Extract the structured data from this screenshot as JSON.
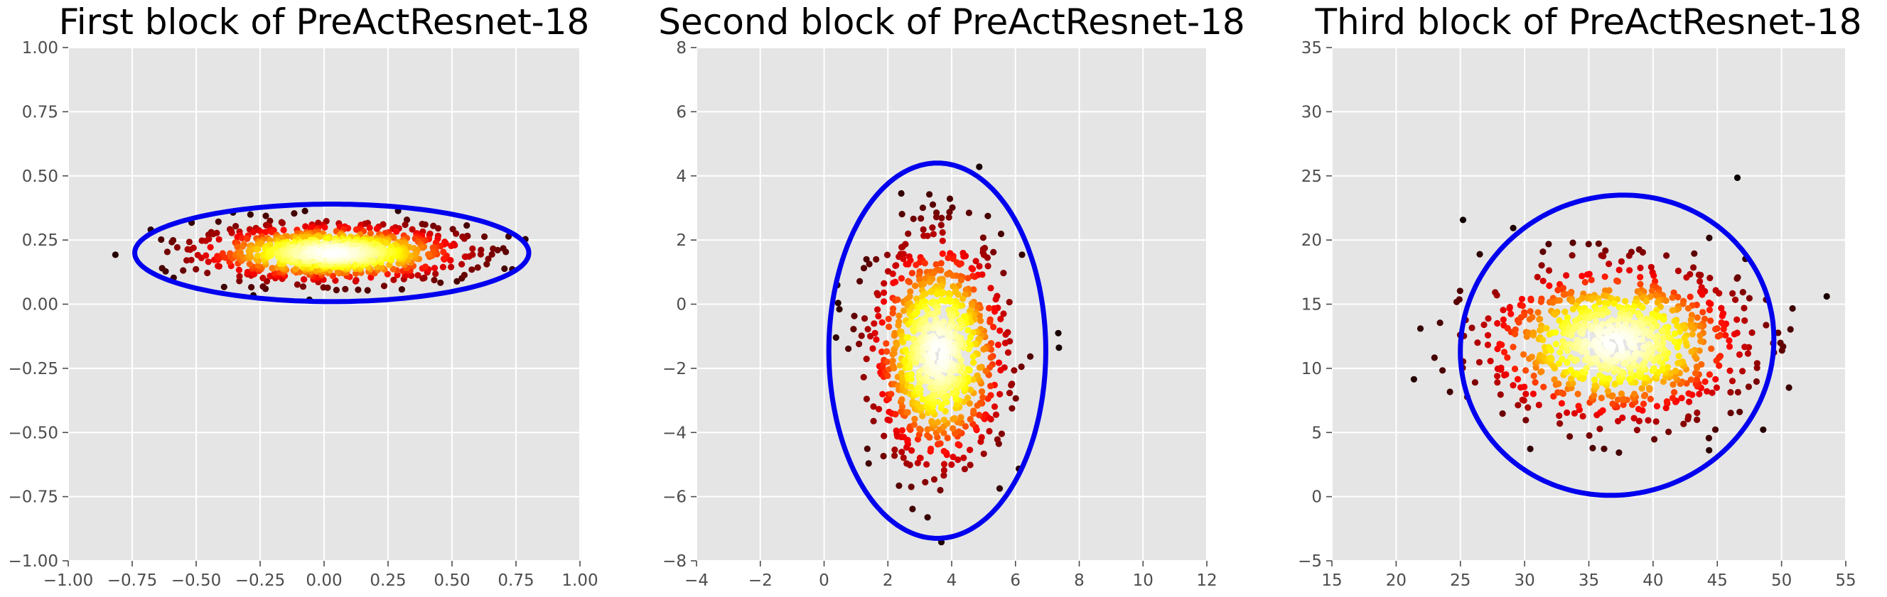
{
  "chart_data": [
    {
      "type": "scatter",
      "title": "First block of PreActResnet-18",
      "xlabel": "",
      "ylabel": "",
      "xlim": [
        -1.0,
        1.0
      ],
      "ylim": [
        -1.0,
        1.0
      ],
      "x_ticks": [
        -1.0,
        -0.75,
        -0.5,
        -0.25,
        0.0,
        0.25,
        0.5,
        0.75,
        1.0
      ],
      "x_tick_labels": [
        "−1.00",
        "−0.75",
        "−0.50",
        "−0.25",
        "0.00",
        "0.25",
        "0.50",
        "0.75",
        "1.00"
      ],
      "y_ticks": [
        -1.0,
        -0.75,
        -0.5,
        -0.25,
        0.0,
        0.25,
        0.5,
        0.75,
        1.0
      ],
      "y_tick_labels": [
        "−1.00",
        "−0.75",
        "−0.50",
        "−0.25",
        "0.00",
        "0.25",
        "0.50",
        "0.75",
        "1.00"
      ],
      "grid": true,
      "point_cloud": {
        "center": [
          0.03,
          0.2
        ],
        "spread": [
          0.26,
          0.055
        ],
        "count": 900,
        "colormap": "hot (density)"
      },
      "confidence_ellipse": {
        "center": [
          0.03,
          0.2
        ],
        "semi_axes": [
          0.77,
          0.19
        ],
        "rotation_deg": 0,
        "color": "#0000ee"
      }
    },
    {
      "type": "scatter",
      "title": "Second block of PreActResnet-18",
      "xlabel": "",
      "ylabel": "",
      "xlim": [
        -4,
        12
      ],
      "ylim": [
        -8,
        8
      ],
      "x_ticks": [
        -4,
        -2,
        0,
        2,
        4,
        6,
        8,
        10,
        12
      ],
      "x_tick_labels": [
        "−4",
        "−2",
        "0",
        "2",
        "4",
        "6",
        "8",
        "10",
        "12"
      ],
      "y_ticks": [
        -8,
        -6,
        -4,
        -2,
        0,
        2,
        4,
        6,
        8
      ],
      "y_tick_labels": [
        "−8",
        "−6",
        "−4",
        "−2",
        "0",
        "2",
        "4",
        "6",
        "8"
      ],
      "grid": true,
      "point_cloud": {
        "center": [
          3.6,
          -1.5
        ],
        "spread": [
          1.05,
          1.75
        ],
        "count": 900,
        "colormap": "hot (density)"
      },
      "confidence_ellipse": {
        "center": [
          3.55,
          -1.45
        ],
        "semi_axes": [
          3.4,
          5.85
        ],
        "rotation_deg": 0,
        "color": "#0000ee"
      }
    },
    {
      "type": "scatter",
      "title": "Third block of PreActResnet-18",
      "xlabel": "",
      "ylabel": "",
      "xlim": [
        15,
        55
      ],
      "ylim": [
        -5,
        35
      ],
      "x_ticks": [
        15,
        20,
        25,
        30,
        35,
        40,
        45,
        50,
        55
      ],
      "x_tick_labels": [
        "15",
        "20",
        "25",
        "30",
        "35",
        "40",
        "45",
        "50",
        "55"
      ],
      "y_ticks": [
        -5,
        0,
        5,
        10,
        15,
        20,
        25,
        30,
        35
      ],
      "y_tick_labels": [
        "−5",
        "0",
        "5",
        "10",
        "15",
        "20",
        "25",
        "30",
        "35"
      ],
      "grid": true,
      "point_cloud": {
        "center": [
          37.0,
          12.0
        ],
        "spread": [
          5.0,
          3.0
        ],
        "count": 900,
        "colormap": "hot (density)"
      },
      "confidence_ellipse": {
        "center": [
          37.2,
          11.8
        ],
        "semi_axes": [
          12.3,
          11.6
        ],
        "rotation_deg": 22,
        "color": "#0000ee"
      }
    }
  ]
}
